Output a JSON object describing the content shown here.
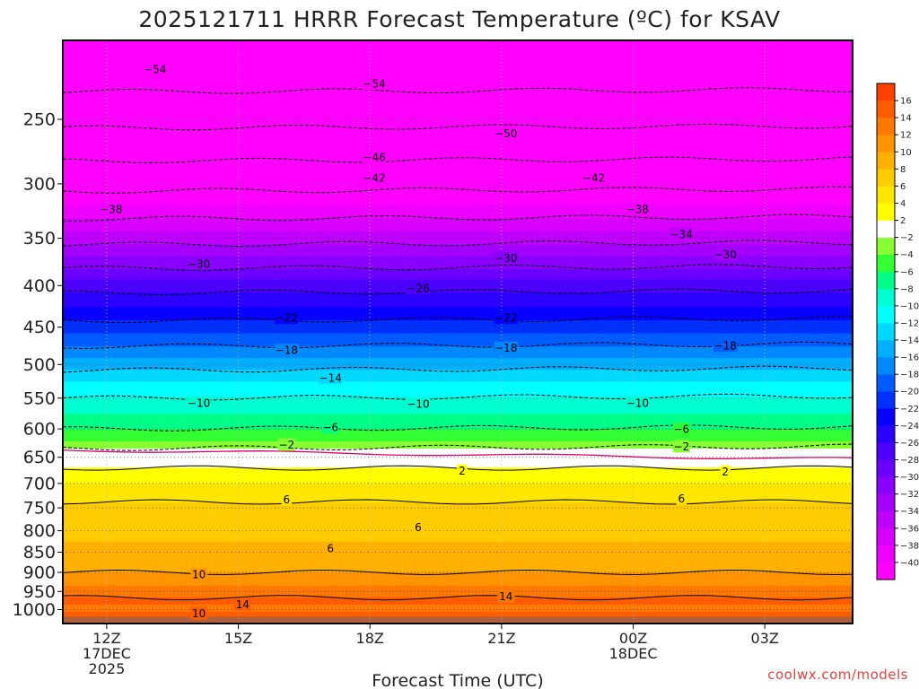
{
  "chart_data": {
    "type": "heatmap",
    "title": "2025121711 HRRR Forecast Temperature (ºC) for KSAV",
    "xlabel": "Forecast Time (UTC)",
    "ylabel": "",
    "credit": "coolwx.com/models",
    "x_ticks": [
      {
        "hour": 12,
        "lines": [
          "12Z",
          "17DEC",
          "2025"
        ]
      },
      {
        "hour": 15,
        "lines": [
          "15Z"
        ]
      },
      {
        "hour": 18,
        "lines": [
          "18Z"
        ]
      },
      {
        "hour": 21,
        "lines": [
          "21Z"
        ]
      },
      {
        "hour": 24,
        "lines": [
          "00Z",
          "18DEC"
        ]
      },
      {
        "hour": 27,
        "lines": [
          "03Z"
        ]
      }
    ],
    "xlim": [
      11,
      29
    ],
    "y_ticks": [
      250,
      300,
      350,
      400,
      450,
      500,
      550,
      600,
      650,
      700,
      750,
      800,
      850,
      900,
      950,
      1000
    ],
    "y_scale": "log pressure (hPa), inverted",
    "ylim": [
      200,
      1040
    ],
    "grid": true,
    "colorbar": {
      "levels": [
        -42,
        -40,
        -38,
        -36,
        -34,
        -32,
        -30,
        -28,
        -26,
        -24,
        -22,
        -20,
        -18,
        -16,
        -14,
        -12,
        -10,
        -8,
        -6,
        -4,
        -2,
        2,
        4,
        6,
        8,
        10,
        12,
        14,
        16,
        18
      ],
      "colors": [
        "#ff00ff",
        "#ee00ff",
        "#d800ff",
        "#c000ff",
        "#a400ff",
        "#8a00ff",
        "#6c00ff",
        "#4c00ff",
        "#2c00ff",
        "#0a00ff",
        "#0030ff",
        "#005cff",
        "#0088ff",
        "#00b0ff",
        "#00d8ff",
        "#00ffff",
        "#00ffd0",
        "#00ff88",
        "#33ff33",
        "#88ff33",
        "#ffffff",
        "#ffff00",
        "#ffe600",
        "#ffcc00",
        "#ffb000",
        "#ff9400",
        "#ff7800",
        "#ff5c00",
        "#ff4000"
      ],
      "tick_labels": [
        -40,
        -38,
        -36,
        -34,
        -32,
        -30,
        -28,
        -26,
        -24,
        -22,
        -20,
        -18,
        -16,
        -14,
        -12,
        -10,
        -8,
        -6,
        -4,
        -2,
        2,
        4,
        6,
        8,
        10,
        12,
        14,
        16
      ]
    },
    "temperature_profile": {
      "pressure_hPa": [
        200,
        225,
        250,
        275,
        300,
        325,
        350,
        375,
        400,
        425,
        450,
        475,
        500,
        525,
        550,
        575,
        600,
        625,
        640,
        650,
        670,
        700,
        725,
        750,
        775,
        800,
        825,
        850,
        875,
        900,
        925,
        950,
        975,
        1000,
        1020
      ],
      "temp_C": [
        -57,
        -55,
        -51,
        -47,
        -43,
        -39,
        -35,
        -31,
        -27,
        -24,
        -21,
        -18,
        -15,
        -12,
        -10,
        -8,
        -6,
        -3.5,
        -1,
        0.5,
        2,
        4,
        5.5,
        6.5,
        7,
        7.5,
        8,
        8.5,
        9,
        10,
        11.5,
        13,
        14.5,
        13.5,
        15
      ]
    },
    "contour_labels": [
      {
        "value": -54,
        "x": 13.1,
        "p": 217
      },
      {
        "value": -54,
        "x": 18.1,
        "p": 226
      },
      {
        "value": -50,
        "x": 21.1,
        "p": 260
      },
      {
        "value": -46,
        "x": 18.1,
        "p": 278
      },
      {
        "value": -42,
        "x": 18.1,
        "p": 295
      },
      {
        "value": -42,
        "x": 23.1,
        "p": 295
      },
      {
        "value": -38,
        "x": 12.1,
        "p": 322
      },
      {
        "value": -38,
        "x": 24.1,
        "p": 322
      },
      {
        "value": -34,
        "x": 25.1,
        "p": 346
      },
      {
        "value": -30,
        "x": 14.1,
        "p": 376
      },
      {
        "value": -30,
        "x": 21.1,
        "p": 370
      },
      {
        "value": -30,
        "x": 26.1,
        "p": 366
      },
      {
        "value": -26,
        "x": 19.1,
        "p": 403
      },
      {
        "value": -22,
        "x": 16.1,
        "p": 438
      },
      {
        "value": -22,
        "x": 21.1,
        "p": 438
      },
      {
        "value": -18,
        "x": 16.1,
        "p": 480
      },
      {
        "value": -18,
        "x": 21.1,
        "p": 477
      },
      {
        "value": -18,
        "x": 26.1,
        "p": 474
      },
      {
        "value": -14,
        "x": 17.1,
        "p": 519
      },
      {
        "value": -10,
        "x": 14.1,
        "p": 557
      },
      {
        "value": -10,
        "x": 19.1,
        "p": 559
      },
      {
        "value": -10,
        "x": 24.1,
        "p": 557
      },
      {
        "value": -6,
        "x": 17.1,
        "p": 597
      },
      {
        "value": -6,
        "x": 25.1,
        "p": 600
      },
      {
        "value": -2,
        "x": 16.1,
        "p": 627
      },
      {
        "value": -2,
        "x": 25.1,
        "p": 630
      },
      {
        "value": 2,
        "x": 20.1,
        "p": 675
      },
      {
        "value": 2,
        "x": 26.1,
        "p": 677
      },
      {
        "value": 6,
        "x": 16.1,
        "p": 732
      },
      {
        "value": 6,
        "x": 25.1,
        "p": 730
      },
      {
        "value": 6,
        "x": 19.1,
        "p": 792
      },
      {
        "value": 6,
        "x": 17.1,
        "p": 840
      },
      {
        "value": 10,
        "x": 14.1,
        "p": 905
      },
      {
        "value": 10,
        "x": 14.1,
        "p": 1010
      },
      {
        "value": 14,
        "x": 15.1,
        "p": 985
      },
      {
        "value": 14,
        "x": 21.1,
        "p": 963
      }
    ]
  }
}
